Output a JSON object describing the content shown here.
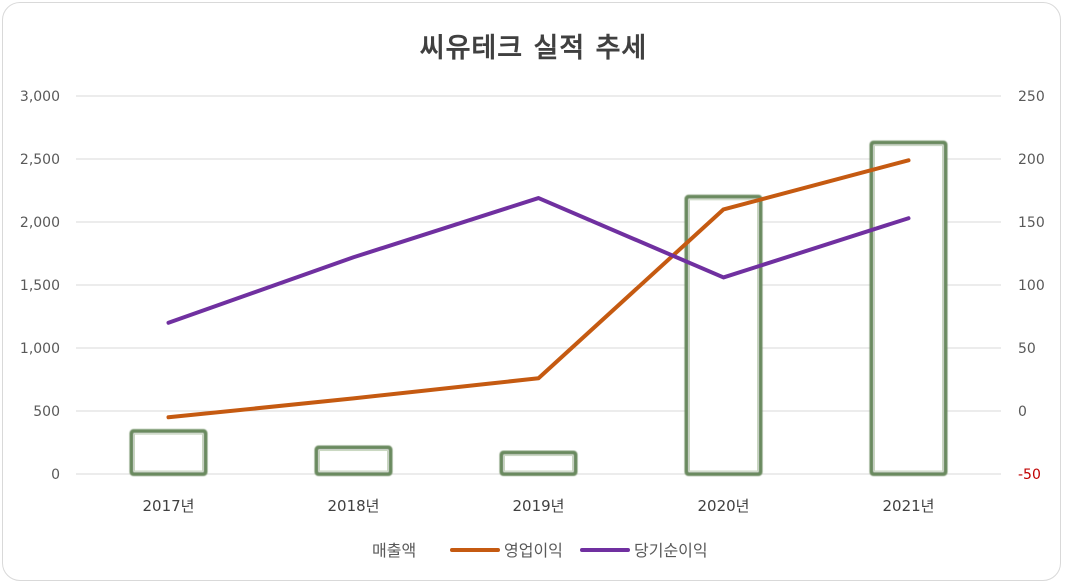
{
  "chart_data": {
    "type": "bar",
    "title": "씨유테크 실적 추세",
    "categories": [
      "2017년",
      "2018년",
      "2019년",
      "2020년",
      "2021년"
    ],
    "series": [
      {
        "name": "매출액",
        "kind": "bar",
        "axis": "left",
        "values": [
          340,
          210,
          170,
          2200,
          2630
        ],
        "color": "#ffffff",
        "stroke": "#6b8a5e"
      },
      {
        "name": "영업이익",
        "kind": "line",
        "axis": "right",
        "values": [
          -5,
          10,
          26,
          160,
          199
        ],
        "color": "#c55a11"
      },
      {
        "name": "당기순이익",
        "kind": "line",
        "axis": "right",
        "values": [
          70,
          122,
          169,
          106,
          153
        ],
        "color": "#7030a0"
      }
    ],
    "y_left": {
      "min": 0,
      "max": 3000,
      "ticks": [
        "3,000",
        "2,500",
        "2,000",
        "1,500",
        "1,000",
        "500",
        "0"
      ],
      "tick_values": [
        3000,
        2500,
        2000,
        1500,
        1000,
        500,
        0
      ]
    },
    "y_right": {
      "min": -50,
      "max": 250,
      "ticks": [
        "250",
        "200",
        "150",
        "100",
        "50",
        "0",
        "-50"
      ],
      "tick_values": [
        250,
        200,
        150,
        100,
        50,
        0,
        -50
      ],
      "negative_color": "#c00000"
    },
    "grid": true,
    "legend_position": "bottom"
  }
}
